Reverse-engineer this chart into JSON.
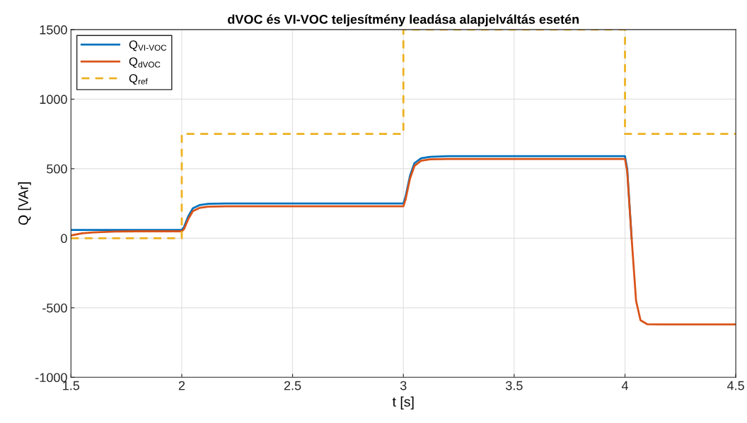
{
  "chart_data": {
    "type": "line",
    "title": "dVOC és VI-VOC teljesítmény leadása alapjelváltás esetén",
    "xlabel": "t [s]",
    "ylabel": "Q [VAr]",
    "xlim": [
      1.5,
      4.5
    ],
    "xticks": [
      1.5,
      2,
      2.5,
      3,
      3.5,
      4,
      4.5
    ],
    "ylim": [
      -1000,
      1500
    ],
    "yticks": [
      -1000,
      -500,
      0,
      500,
      1000,
      1500
    ],
    "grid": true,
    "legend": "top left",
    "series": [
      {
        "name": "Q$_{VI-VOC}$",
        "color": "#0072bd",
        "line_style": "solid",
        "x": [
          1.5,
          2.0,
          2.01,
          2.03,
          2.05,
          2.08,
          2.12,
          2.2,
          3.0,
          3.01,
          3.03,
          3.05,
          3.08,
          3.12,
          3.2,
          4.0,
          4.01,
          4.03
        ],
        "values": [
          60,
          60,
          80,
          160,
          215,
          238,
          247,
          250,
          250,
          300,
          450,
          540,
          575,
          585,
          590,
          590,
          500,
          0
        ]
      },
      {
        "name": "Q$_{dVOC}$",
        "color": "#d95319",
        "line_style": "solid",
        "x": [
          1.5,
          1.55,
          1.6,
          1.7,
          1.8,
          2.0,
          2.01,
          2.03,
          2.05,
          2.08,
          2.12,
          2.2,
          3.0,
          3.01,
          3.03,
          3.05,
          3.08,
          3.12,
          3.2,
          4.0,
          4.01,
          4.03,
          4.05,
          4.07,
          4.1,
          4.15,
          4.5
        ],
        "values": [
          20,
          35,
          42,
          48,
          50,
          50,
          65,
          140,
          195,
          218,
          227,
          230,
          230,
          280,
          430,
          520,
          557,
          567,
          570,
          570,
          480,
          0,
          -450,
          -590,
          -618,
          -620,
          -620
        ]
      },
      {
        "name": "Q$_{ref}$",
        "type": "step",
        "color": "#edb120",
        "line_style": "dashed",
        "x": [
          1.5,
          2,
          3,
          4,
          4.5
        ],
        "values": [
          0,
          750,
          1500,
          750,
          750
        ]
      }
    ]
  }
}
